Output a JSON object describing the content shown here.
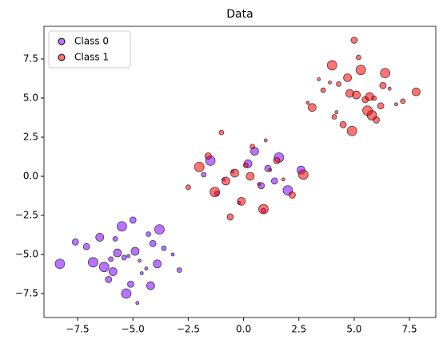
{
  "chart_data": {
    "type": "scatter",
    "title": "Data",
    "xlim": [
      -9.02,
      8.69
    ],
    "ylim": [
      -9.03,
      9.59
    ],
    "xticks": [
      {
        "value": -7.5,
        "label": "−7.5"
      },
      {
        "value": -5,
        "label": "−5.0"
      },
      {
        "value": -2.5,
        "label": "−2.5"
      },
      {
        "value": 0,
        "label": "0.0"
      },
      2.5,
      {
        "value": 5,
        "label": "5.0"
      },
      7.5
    ],
    "yticks": [
      {
        "value": -7.5,
        "label": "−7.5"
      },
      {
        "value": -5,
        "label": "−5.0"
      },
      {
        "value": -2.5,
        "label": "−2.5"
      },
      {
        "value": 0,
        "label": "0.0"
      },
      2.5,
      {
        "value": 5,
        "label": "5.0"
      },
      7.5
    ],
    "legend": "upper left",
    "series": [
      {
        "name": "Class 0",
        "color": "#8000ff",
        "x": [
          -5.2,
          -4.1,
          -6.3,
          -5.8,
          -3.9,
          -4.6,
          -7.1,
          -5.5,
          -6.0,
          -4.9,
          -3.2,
          -5.1,
          -6.8,
          -4.3,
          -5.9,
          -4.7,
          -7.6,
          -5.3,
          -3.6,
          -6.5,
          -4.4,
          -5.0,
          -8.3,
          -2.9,
          -5.7,
          -4.8,
          -6.1,
          -3.8,
          -5.4,
          -4.2,
          -0.5,
          0.8,
          1.6,
          -1.2,
          0.2,
          -0.9,
          1.1,
          2.0,
          -1.8,
          0.5,
          -0.2,
          1.4,
          -1.5,
          0.9,
          2.6
        ],
        "values": [
          -5.1,
          -4.3,
          -5.8,
          -4.0,
          -5.6,
          -6.2,
          -4.5,
          -3.2,
          -5.3,
          -4.8,
          -5.0,
          -6.9,
          -5.5,
          -3.7,
          -6.1,
          -5.4,
          -4.2,
          -7.5,
          -4.6,
          -3.9,
          -5.9,
          -2.8,
          -5.6,
          -6.0,
          -4.9,
          -8.1,
          -6.6,
          -3.4,
          -5.2,
          -7.0,
          0.3,
          -0.6,
          1.2,
          -1.1,
          0.8,
          -0.2,
          0.5,
          -0.9,
          0.1,
          1.6,
          -1.7,
          -0.3,
          1.0,
          -2.2,
          0.4
        ]
      },
      {
        "name": "Class 1",
        "color": "#ff0000",
        "x": [
          5.1,
          4.2,
          6.3,
          5.8,
          3.6,
          4.7,
          6.9,
          5.5,
          4.0,
          5.9,
          3.1,
          6.6,
          4.5,
          5.3,
          7.2,
          4.8,
          3.9,
          6.0,
          5.6,
          4.3,
          7.8,
          2.9,
          5.0,
          6.4,
          4.1,
          5.7,
          3.4,
          6.2,
          4.9,
          5.2,
          -0.4,
          0.7,
          1.5,
          -1.3,
          0.1,
          -0.8,
          1.2,
          2.2,
          -2.0,
          0.4,
          -0.1,
          1.8,
          -1.6,
          0.9,
          -2.5,
          0.3,
          1.0,
          -0.6,
          2.7,
          -1.0
        ],
        "values": [
          5.2,
          4.1,
          5.8,
          3.9,
          5.5,
          6.3,
          4.6,
          4.9,
          7.1,
          5.0,
          4.4,
          5.6,
          3.3,
          6.8,
          4.8,
          5.3,
          6.0,
          3.6,
          4.2,
          5.9,
          5.4,
          4.7,
          8.7,
          6.6,
          3.8,
          5.1,
          6.2,
          4.5,
          2.9,
          7.6,
          0.2,
          -0.5,
          1.0,
          -1.0,
          0.7,
          -0.3,
          0.4,
          -1.2,
          0.6,
          1.9,
          -1.6,
          -0.2,
          1.3,
          -2.1,
          -0.7,
          0.0,
          2.3,
          -2.6,
          0.1,
          2.8
        ]
      }
    ]
  }
}
